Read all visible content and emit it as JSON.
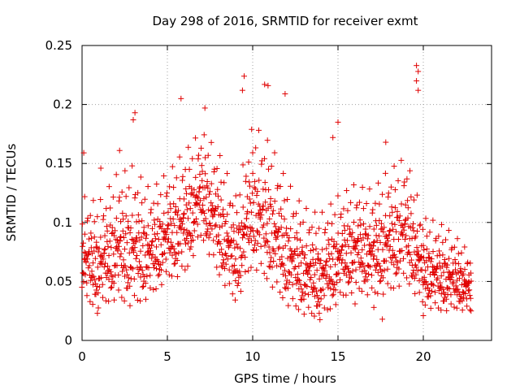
{
  "colors": {
    "series": "#e00000",
    "grid": "#a0a0a0",
    "axis": "#000000"
  },
  "chart_data": {
    "type": "scatter",
    "title": "Day 298 of 2016, SRMTID for receiver exmt",
    "xlabel": "GPS time / hours",
    "ylabel": "SRMTID / TECUs",
    "xlim": [
      0,
      24
    ],
    "ylim": [
      0,
      0.25
    ],
    "xticks": [
      0,
      5,
      10,
      15,
      20
    ],
    "xtick_labels": [
      "0",
      "5",
      "10",
      "15",
      "20"
    ],
    "yticks": [
      0,
      0.05,
      0.1,
      0.15,
      0.2,
      0.25
    ],
    "ytick_labels": [
      "0",
      "0.05",
      "0.1",
      "0.15",
      "0.2",
      "0.25"
    ],
    "grid": true,
    "marker": "plus",
    "outlier_points": [
      {
        "x": 9.5,
        "y": 0.224
      },
      {
        "x": 9.4,
        "y": 0.212
      },
      {
        "x": 10.7,
        "y": 0.217
      },
      {
        "x": 10.9,
        "y": 0.216
      },
      {
        "x": 11.9,
        "y": 0.209
      },
      {
        "x": 5.8,
        "y": 0.205
      },
      {
        "x": 19.6,
        "y": 0.233
      },
      {
        "x": 19.7,
        "y": 0.228
      },
      {
        "x": 19.6,
        "y": 0.22
      },
      {
        "x": 19.7,
        "y": 0.212
      },
      {
        "x": 3.1,
        "y": 0.193
      },
      {
        "x": 3.0,
        "y": 0.187
      },
      {
        "x": 0.1,
        "y": 0.159
      },
      {
        "x": 1.1,
        "y": 0.146
      },
      {
        "x": 2.2,
        "y": 0.161
      },
      {
        "x": 7.2,
        "y": 0.197
      },
      {
        "x": 15.0,
        "y": 0.185
      },
      {
        "x": 14.7,
        "y": 0.172
      },
      {
        "x": 17.8,
        "y": 0.168
      },
      {
        "x": 0.9,
        "y": 0.023
      },
      {
        "x": 13.9,
        "y": 0.023
      },
      {
        "x": 17.1,
        "y": 0.028
      },
      {
        "x": 17.6,
        "y": 0.018
      },
      {
        "x": 20.0,
        "y": 0.021
      },
      {
        "x": 22.8,
        "y": 0.025
      },
      {
        "x": 16.0,
        "y": 0.031
      }
    ],
    "trend_profile": [
      {
        "x": 0.0,
        "y": 0.075,
        "spread": 0.03
      },
      {
        "x": 1.0,
        "y": 0.07,
        "spread": 0.03
      },
      {
        "x": 2.0,
        "y": 0.085,
        "spread": 0.035
      },
      {
        "x": 3.0,
        "y": 0.085,
        "spread": 0.04
      },
      {
        "x": 4.0,
        "y": 0.08,
        "spread": 0.03
      },
      {
        "x": 5.0,
        "y": 0.095,
        "spread": 0.03
      },
      {
        "x": 6.0,
        "y": 0.105,
        "spread": 0.035
      },
      {
        "x": 7.0,
        "y": 0.13,
        "spread": 0.03
      },
      {
        "x": 8.0,
        "y": 0.105,
        "spread": 0.035
      },
      {
        "x": 9.0,
        "y": 0.075,
        "spread": 0.03
      },
      {
        "x": 10.0,
        "y": 0.12,
        "spread": 0.04
      },
      {
        "x": 11.0,
        "y": 0.105,
        "spread": 0.04
      },
      {
        "x": 12.0,
        "y": 0.08,
        "spread": 0.035
      },
      {
        "x": 13.0,
        "y": 0.065,
        "spread": 0.03
      },
      {
        "x": 14.0,
        "y": 0.06,
        "spread": 0.03
      },
      {
        "x": 15.0,
        "y": 0.075,
        "spread": 0.03
      },
      {
        "x": 16.0,
        "y": 0.085,
        "spread": 0.03
      },
      {
        "x": 17.0,
        "y": 0.08,
        "spread": 0.03
      },
      {
        "x": 18.0,
        "y": 0.09,
        "spread": 0.035
      },
      {
        "x": 19.0,
        "y": 0.1,
        "spread": 0.035
      },
      {
        "x": 20.0,
        "y": 0.065,
        "spread": 0.025
      },
      {
        "x": 21.0,
        "y": 0.06,
        "spread": 0.025
      },
      {
        "x": 22.0,
        "y": 0.055,
        "spread": 0.02
      },
      {
        "x": 23.0,
        "y": 0.045,
        "spread": 0.015
      }
    ],
    "sample_count": 1500,
    "x_start": 0.0,
    "x_end": 22.8
  }
}
